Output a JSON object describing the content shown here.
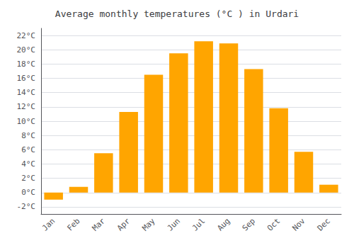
{
  "chart_data": {
    "type": "bar",
    "title": "Average monthly temperatures (°C ) in Urdari",
    "categories": [
      "Jan",
      "Feb",
      "Mar",
      "Apr",
      "May",
      "Jun",
      "Jul",
      "Aug",
      "Sep",
      "Oct",
      "Nov",
      "Dec"
    ],
    "values": [
      -1.0,
      0.8,
      5.5,
      11.3,
      16.5,
      19.5,
      21.2,
      20.9,
      17.3,
      11.8,
      5.7,
      1.1
    ],
    "color": "#FFA500",
    "ylim": [
      -3,
      23
    ],
    "yticks": [
      {
        "value": -2,
        "label": "-2°C"
      },
      {
        "value": 0,
        "label": "0°C"
      },
      {
        "value": 2,
        "label": "2°C"
      },
      {
        "value": 4,
        "label": "4°C"
      },
      {
        "value": 6,
        "label": "6°C"
      },
      {
        "value": 8,
        "label": "8°C"
      },
      {
        "value": 10,
        "label": "10°C"
      },
      {
        "value": 12,
        "label": "12°C"
      },
      {
        "value": 14,
        "label": "14°C"
      },
      {
        "value": 16,
        "label": "16°C"
      },
      {
        "value": 18,
        "label": "18°C"
      },
      {
        "value": 20,
        "label": "20°C"
      },
      {
        "value": 22,
        "label": "22°C"
      }
    ],
    "grid": true
  }
}
